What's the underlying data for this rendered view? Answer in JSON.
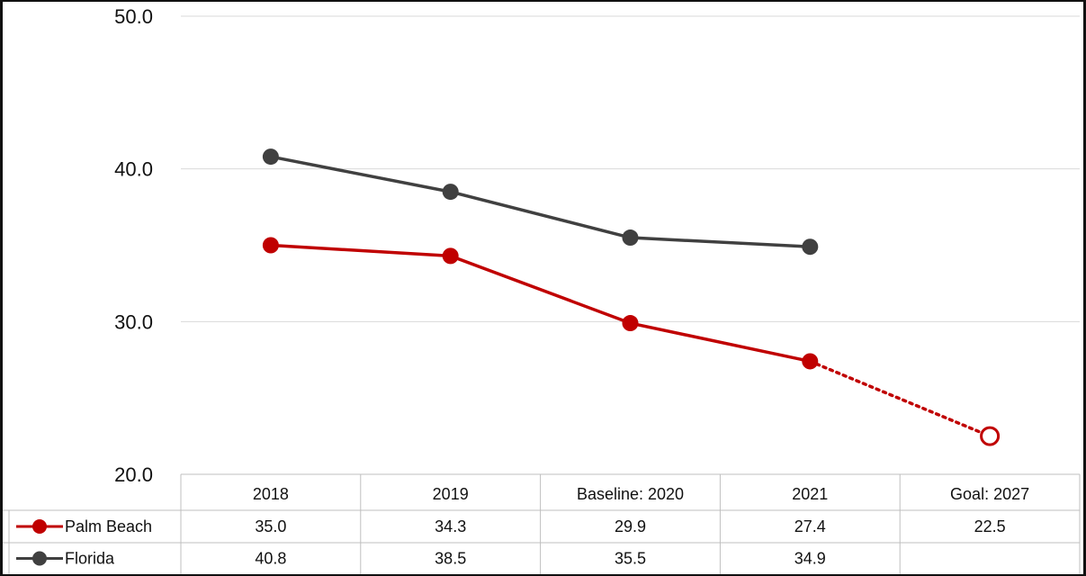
{
  "chart_data": {
    "type": "line",
    "categories": [
      "2018",
      "2019",
      "Baseline: 2020",
      "2021",
      "Goal: 2027"
    ],
    "series": [
      {
        "name": "Palm Beach",
        "values": [
          35.0,
          34.3,
          29.9,
          27.4,
          22.5
        ],
        "color": "#c00000",
        "labels": [
          "35.0",
          "34.3",
          "29.9",
          "27.4",
          "22.5"
        ],
        "style": "solid; dotted to goal; goal marker hollow"
      },
      {
        "name": "Florida",
        "values": [
          40.8,
          38.5,
          35.5,
          34.9,
          null
        ],
        "color": "#404040",
        "labels": [
          "40.8",
          "38.5",
          "35.5",
          "34.9",
          ""
        ]
      }
    ],
    "yticks": [
      "20.0",
      "30.0",
      "40.0",
      "50.0"
    ],
    "ylim": [
      20,
      50
    ],
    "grid": true,
    "legend": "data table below chart"
  }
}
